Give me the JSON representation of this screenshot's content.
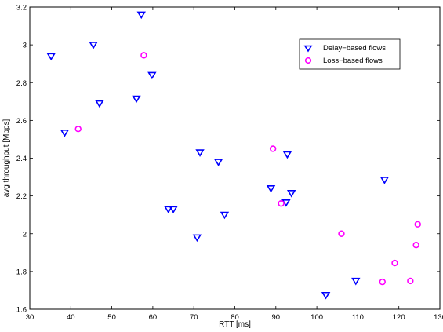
{
  "chart_data": {
    "type": "scatter",
    "xlabel": "RTT [ms]",
    "ylabel": "avg throughput [Mbps]",
    "xlim": [
      30,
      130
    ],
    "ylim": [
      1.6,
      3.2
    ],
    "grid": false,
    "legend_position": "top-right",
    "x_ticks": [
      30,
      40,
      50,
      60,
      70,
      80,
      90,
      100,
      110,
      120,
      130
    ],
    "y_ticks": [
      1.6,
      1.8,
      2.0,
      2.2,
      2.4,
      2.6,
      2.8,
      3.0,
      3.2
    ],
    "x_tick_labels": [
      "30",
      "40",
      "50",
      "60",
      "70",
      "80",
      "90",
      "100",
      "110",
      "120",
      "130"
    ],
    "y_tick_labels": [
      "1.6",
      "1.8",
      "2",
      "2.2",
      "2.4",
      "2.6",
      "2.8",
      "3",
      "3.2"
    ],
    "series": [
      {
        "name": "Delay−based flows",
        "marker": "triangle-down",
        "color": "#0000ff",
        "points": [
          [
            35.2,
            2.94
          ],
          [
            38.5,
            2.535
          ],
          [
            45.5,
            3.0
          ],
          [
            47.0,
            2.69
          ],
          [
            56.0,
            2.715
          ],
          [
            57.2,
            3.16
          ],
          [
            59.8,
            2.84
          ],
          [
            63.8,
            2.13
          ],
          [
            65.0,
            2.13
          ],
          [
            70.8,
            1.98
          ],
          [
            71.5,
            2.43
          ],
          [
            76.0,
            2.38
          ],
          [
            77.5,
            2.1
          ],
          [
            88.8,
            2.24
          ],
          [
            92.8,
            2.42
          ],
          [
            92.5,
            2.165
          ],
          [
            93.8,
            2.215
          ],
          [
            102.2,
            1.675
          ],
          [
            109.5,
            1.75
          ],
          [
            116.5,
            2.285
          ]
        ]
      },
      {
        "name": "Loss−based flows",
        "marker": "circle",
        "color": "#ff00ff",
        "points": [
          [
            41.8,
            2.555
          ],
          [
            57.8,
            2.945
          ],
          [
            89.3,
            2.45
          ],
          [
            91.3,
            2.16
          ],
          [
            106.0,
            2.0
          ],
          [
            116.0,
            1.745
          ],
          [
            119.0,
            1.845
          ],
          [
            122.8,
            1.75
          ],
          [
            124.2,
            1.94
          ],
          [
            124.6,
            2.05
          ]
        ]
      }
    ]
  }
}
